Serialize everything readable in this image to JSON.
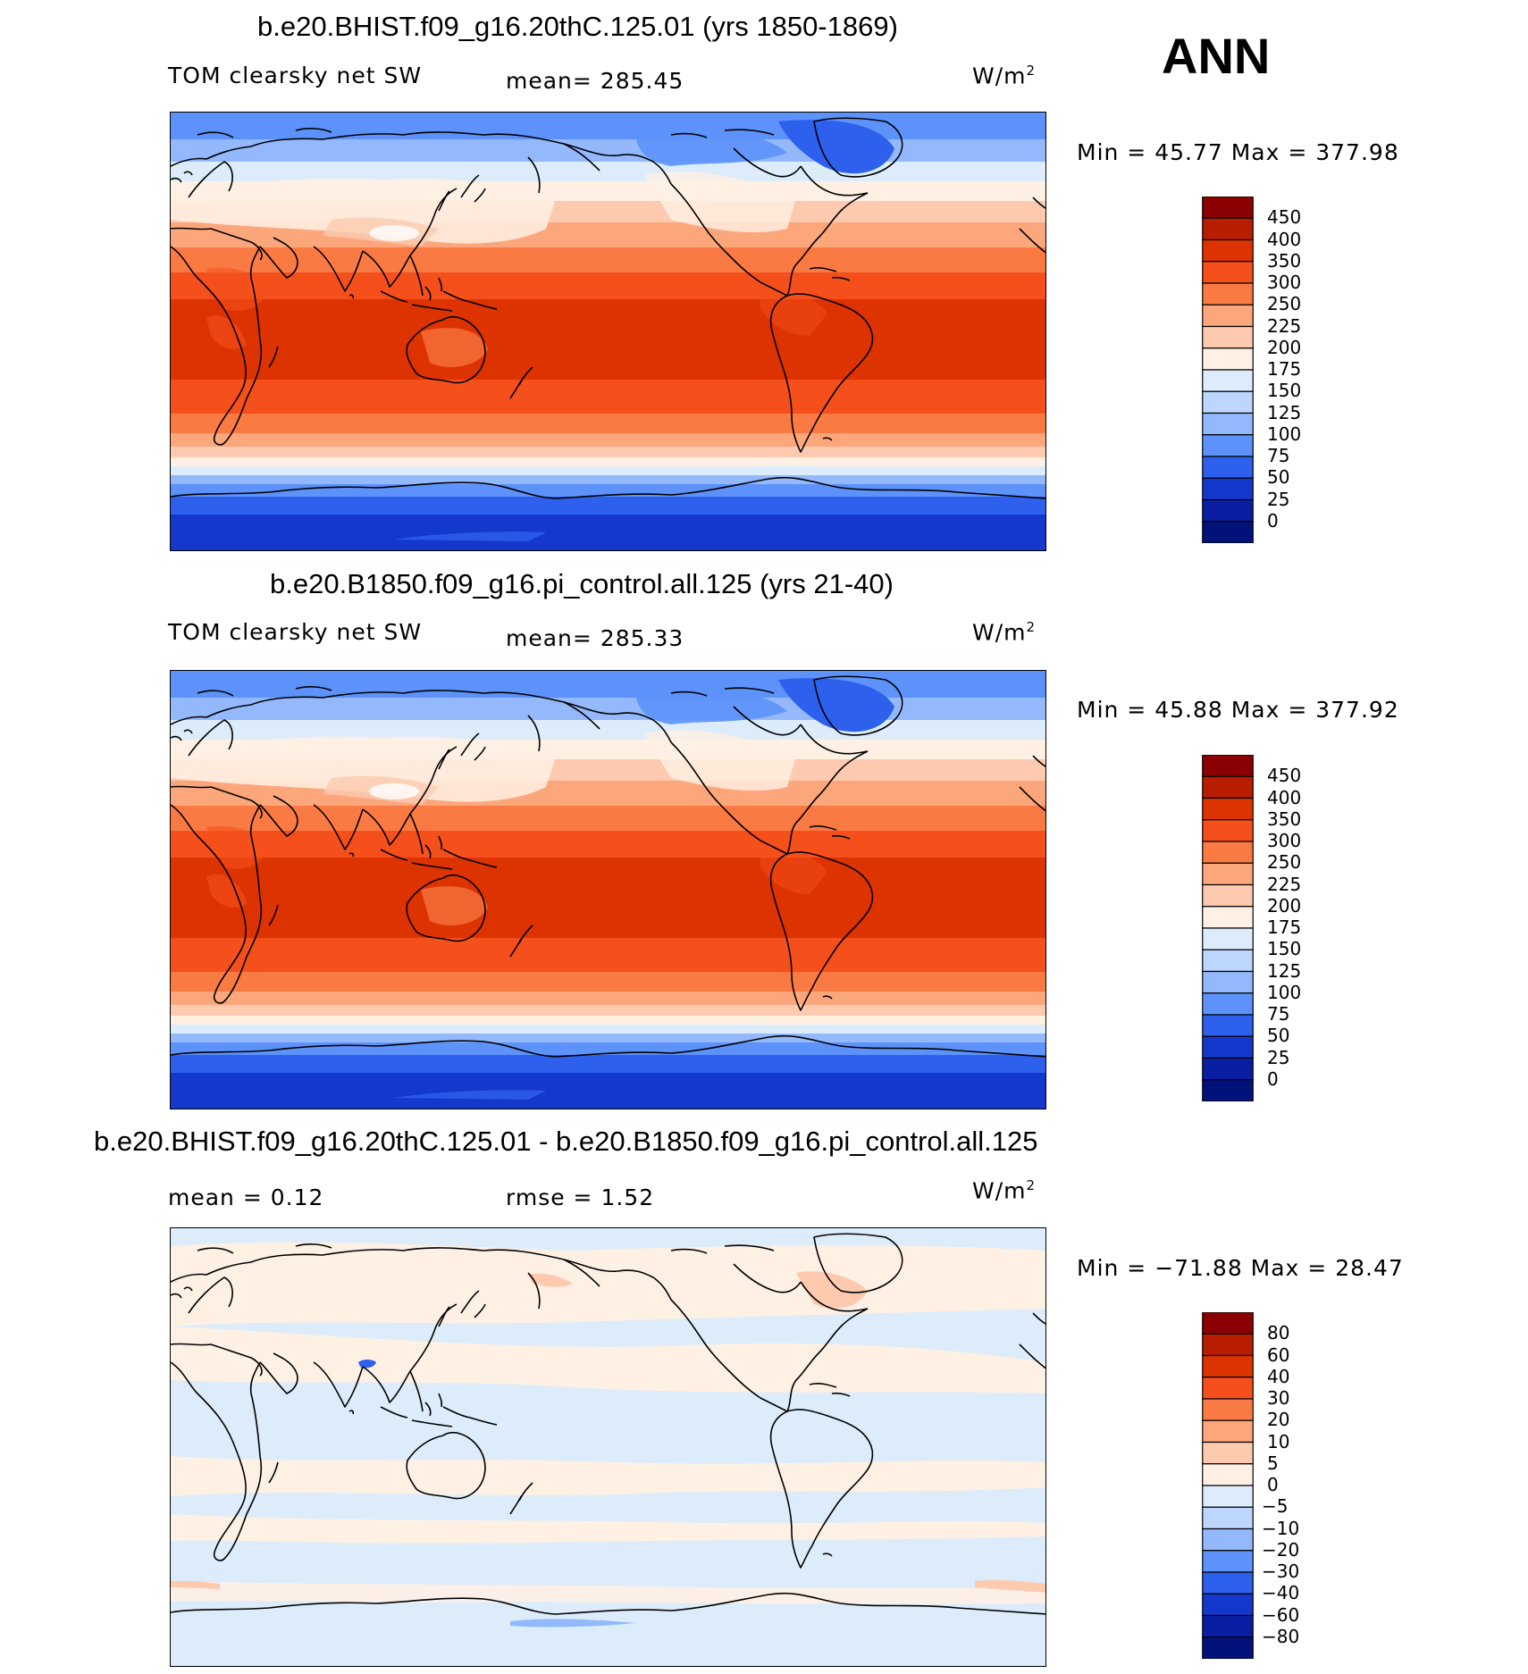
{
  "season": "ANN",
  "units": "W/m",
  "units_exp": "2",
  "panels": [
    {
      "title": "b.e20.BHIST.f09_g16.20thC.125.01 (yrs 1850-1869)",
      "left_label": "TOM clearsky net SW",
      "mid_label": "mean= 285.45",
      "minmax": "Min =   45.77 Max  =  377.98",
      "palette": "abs",
      "levels": [
        "450",
        "400",
        "350",
        "300",
        "250",
        "225",
        "200",
        "175",
        "150",
        "125",
        "100",
        "75",
        "50",
        "25",
        "0"
      ]
    },
    {
      "title": "b.e20.B1850.f09_g16.pi_control.all.125 (yrs 21-40)",
      "left_label": "TOM clearsky net SW",
      "mid_label": "mean= 285.33",
      "minmax": "Min =   45.88 Max  =  377.92",
      "palette": "abs",
      "levels": [
        "450",
        "400",
        "350",
        "300",
        "250",
        "225",
        "200",
        "175",
        "150",
        "125",
        "100",
        "75",
        "50",
        "25",
        "0"
      ]
    },
    {
      "title": "b.e20.BHIST.f09_g16.20thC.125.01 - b.e20.B1850.f09_g16.pi_control.all.125",
      "left_label": "mean =    0.12",
      "mid_label": "rmse =    1.52",
      "minmax": "Min = −71.88 Max  =   28.47",
      "palette": "diff",
      "levels": [
        "80",
        "60",
        "40",
        "30",
        "20",
        "10",
        "5",
        "0",
        "−5",
        "−10",
        "−20",
        "−30",
        "−40",
        "−60",
        "−80"
      ]
    }
  ],
  "colors": {
    "abs": [
      "#8b0000",
      "#b81d00",
      "#dd3300",
      "#f5501c",
      "#fa7a44",
      "#fca67c",
      "#fdcab0",
      "#fff0e4",
      "#dcecfb",
      "#bcd6fd",
      "#93b9fc",
      "#5d92fb",
      "#2e60ee",
      "#1438cc",
      "#0a1ea3",
      "#03127a"
    ],
    "diff": [
      "#8b0000",
      "#b81d00",
      "#dd3300",
      "#f5501c",
      "#fa7a44",
      "#fca67c",
      "#fdcab0",
      "#fff0e4",
      "#dcecfb",
      "#bcd6fd",
      "#93b9fc",
      "#5d92fb",
      "#2e60ee",
      "#1438cc",
      "#0a1ea3",
      "#03127a"
    ]
  }
}
